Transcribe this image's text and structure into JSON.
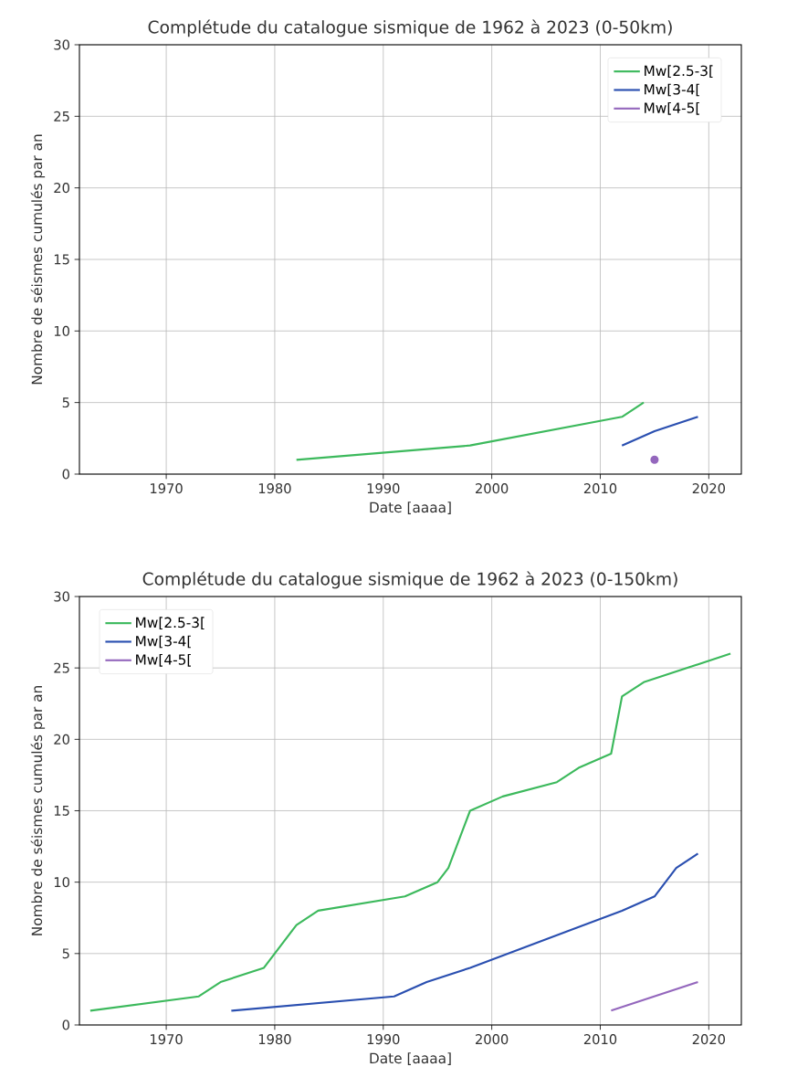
{
  "chart_data": [
    {
      "type": "line",
      "title": "Complétude du catalogue sismique de 1962 à 2023 (0-50km)",
      "xlabel": "Date [aaaa]",
      "ylabel": "Nombre de séismes cumulés par an",
      "xlim": [
        1962,
        2023
      ],
      "ylim": [
        0,
        30
      ],
      "xticks": [
        1970,
        1980,
        1990,
        2000,
        2010,
        2020
      ],
      "yticks": [
        0,
        5,
        10,
        15,
        20,
        25,
        30
      ],
      "grid": true,
      "legend": "top right",
      "series": [
        {
          "name": "Mw[2.5-3[",
          "color": "#3cb95c",
          "x": [
            1982,
            1998,
            2012,
            2014
          ],
          "values": [
            1,
            2,
            4,
            5
          ]
        },
        {
          "name": "Mw[3-4[",
          "color": "#2a4fb0",
          "x": [
            2012,
            2015,
            2019
          ],
          "values": [
            2,
            3,
            4
          ]
        },
        {
          "name": "Mw[4-5[",
          "color": "#9467bd",
          "x": [
            2015
          ],
          "values": [
            1
          ],
          "marker": "circle"
        }
      ]
    },
    {
      "type": "line",
      "title": "Complétude du catalogue sismique de 1962 à 2023 (0-150km)",
      "xlabel": "Date [aaaa]",
      "ylabel": "Nombre de séismes cumulés par an",
      "xlim": [
        1962,
        2023
      ],
      "ylim": [
        0,
        30
      ],
      "xticks": [
        1970,
        1980,
        1990,
        2000,
        2010,
        2020
      ],
      "yticks": [
        0,
        5,
        10,
        15,
        20,
        25,
        30
      ],
      "grid": true,
      "legend": "top left",
      "series": [
        {
          "name": "Mw[2.5-3[",
          "color": "#3cb95c",
          "x": [
            1963,
            1973,
            1975,
            1979,
            1982,
            1984,
            1992,
            1995,
            1996,
            1998,
            2001,
            2006,
            2008,
            2011,
            2012,
            2014,
            2022
          ],
          "values": [
            1,
            2,
            3,
            4,
            7,
            8,
            9,
            10,
            11,
            15,
            16,
            17,
            18,
            19,
            23,
            24,
            26
          ]
        },
        {
          "name": "Mw[3-4[",
          "color": "#2a4fb0",
          "x": [
            1976,
            1991,
            1994,
            1998,
            2012,
            2015,
            2017,
            2019
          ],
          "values": [
            1,
            2,
            3,
            4,
            8,
            9,
            11,
            12
          ]
        },
        {
          "name": "Mw[4-5[",
          "color": "#9467bd",
          "x": [
            2011,
            2019
          ],
          "values": [
            1,
            3
          ]
        }
      ]
    }
  ]
}
